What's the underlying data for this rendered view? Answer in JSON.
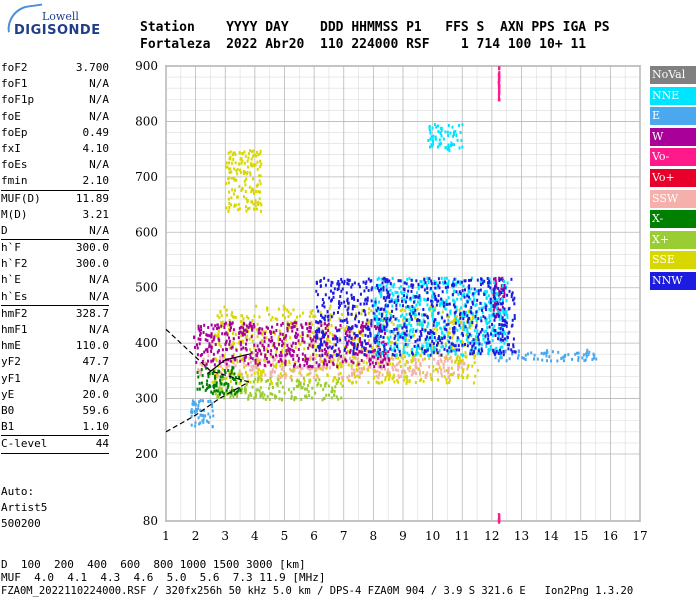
{
  "header": {
    "labels": "Station    YYYY DAY    DDD HHMMSS P1   FFS S  AXN PPS IGA PS",
    "values": "Fortaleza  2022 Abr20  110 224000 RSF    1 714 100 10+ 11"
  },
  "logo": {
    "top": "Lowell",
    "main": "DIGISONDE"
  },
  "params": {
    "group1": [
      {
        "name": "foF2",
        "value": "3.700"
      },
      {
        "name": "foF1",
        "value": "N/A"
      },
      {
        "name": "foF1p",
        "value": "N/A"
      },
      {
        "name": "foE",
        "value": "N/A"
      },
      {
        "name": "foEp",
        "value": "0.49"
      },
      {
        "name": "fxI",
        "value": "4.10"
      },
      {
        "name": "foEs",
        "value": "N/A"
      },
      {
        "name": "fmin",
        "value": "2.10"
      }
    ],
    "group2": [
      {
        "name": "MUF(D)",
        "value": "11.89"
      },
      {
        "name": "M(D)",
        "value": "3.21"
      },
      {
        "name": "D",
        "value": "N/A"
      }
    ],
    "group3": [
      {
        "name": "h`F",
        "value": "300.0"
      },
      {
        "name": "h`F2",
        "value": "300.0"
      },
      {
        "name": "h`E",
        "value": "N/A"
      },
      {
        "name": "h`Es",
        "value": "N/A"
      }
    ],
    "group4": [
      {
        "name": "hmF2",
        "value": "328.7"
      },
      {
        "name": "hmF1",
        "value": "N/A"
      },
      {
        "name": "hmE",
        "value": "110.0"
      },
      {
        "name": "yF2",
        "value": "47.7"
      },
      {
        "name": "yF1",
        "value": "N/A"
      },
      {
        "name": "yE",
        "value": "20.0"
      },
      {
        "name": "B0",
        "value": "59.6"
      },
      {
        "name": "B1",
        "value": "1.10"
      }
    ],
    "group5": [
      {
        "name": "C-level",
        "value": "44"
      }
    ]
  },
  "auto": {
    "line1": "Auto:",
    "line2": "Artist5",
    "line3": "500200"
  },
  "legend": [
    {
      "label": "NoVal",
      "color": "#808080"
    },
    {
      "label": "NNE",
      "color": "#00e5ff"
    },
    {
      "label": "E",
      "color": "#4aa8ee"
    },
    {
      "label": "W",
      "color": "#aa009a"
    },
    {
      "label": "Vo-",
      "color": "#ff1a8c"
    },
    {
      "label": "Vo+",
      "color": "#e8002a"
    },
    {
      "label": "SSW",
      "color": "#f5b0ac"
    },
    {
      "label": "X-",
      "color": "#008000"
    },
    {
      "label": "X+",
      "color": "#9acd32"
    },
    {
      "label": "SSE",
      "color": "#d8d800"
    },
    {
      "label": "NNW",
      "color": "#1c1ce0"
    }
  ],
  "footer": {
    "d_label": "D",
    "d_values": "  100  200  400  600  800 1000 1500 3000 [km]",
    "muf_label": "MUF",
    "muf_values": "  4.0  4.1  4.3  4.6  5.0  5.6  7.3 11.9 [MHz]",
    "info": "FZA0M_2022110224000.RSF / 320fx256h 50 kHz 5.0 km / DPS-4 FZA0M 904 / 3.9 S 321.6 E   Ion2Png 1.3.20"
  },
  "chart_data": {
    "type": "scatter",
    "title": "",
    "xlabel": "",
    "ylabel": "",
    "xlim": [
      1,
      17
    ],
    "ylim_segments": [
      [
        80,
        200
      ],
      [
        200,
        900
      ]
    ],
    "x_ticks": [
      1,
      2,
      3,
      4,
      5,
      6,
      7,
      8,
      9,
      10,
      11,
      12,
      13,
      14,
      15,
      16,
      17
    ],
    "y_ticks": [
      80,
      200,
      300,
      400,
      500,
      600,
      700,
      800,
      900
    ],
    "grid": true,
    "legend_position": "right",
    "series": [
      {
        "name": "SSW",
        "regions": [
          {
            "x": [
              2.0,
              11.2
            ],
            "y": [
              340,
              380
            ]
          }
        ]
      },
      {
        "name": "SSE",
        "regions": [
          {
            "x": [
              2.5,
              11.5
            ],
            "y": [
              330,
              470
            ]
          },
          {
            "x": [
              3.0,
              4.2
            ],
            "y": [
              640,
              750
            ]
          }
        ]
      },
      {
        "name": "W",
        "regions": [
          {
            "x": [
              1.9,
              8.5
            ],
            "y": [
              360,
              440
            ]
          },
          {
            "x": [
              12.0,
              12.4
            ],
            "y": [
              450,
              520
            ]
          }
        ]
      },
      {
        "name": "E",
        "regions": [
          {
            "x": [
              12.0,
              15.5
            ],
            "y": [
              370,
              390
            ]
          },
          {
            "x": [
              1.8,
              2.6
            ],
            "y": [
              250,
              300
            ]
          }
        ]
      },
      {
        "name": "NNE",
        "regions": [
          {
            "x": [
              9.8,
              11.0
            ],
            "y": [
              750,
              800
            ]
          },
          {
            "x": [
              8.0,
              12.5
            ],
            "y": [
              380,
              520
            ]
          }
        ]
      },
      {
        "name": "NNW",
        "regions": [
          {
            "x": [
              6.0,
              12.8
            ],
            "y": [
              380,
              520
            ]
          }
        ]
      },
      {
        "name": "X+",
        "regions": [
          {
            "x": [
              2.6,
              7.0
            ],
            "y": [
              300,
              340
            ]
          }
        ]
      },
      {
        "name": "X-",
        "regions": [
          {
            "x": [
              2.0,
              3.5
            ],
            "y": [
              310,
              360
            ]
          }
        ]
      },
      {
        "name": "Vo-",
        "regions": [
          {
            "x": [
              12.2,
              12.2
            ],
            "y": [
              840,
              900
            ]
          },
          {
            "x": [
              12.2,
              12.2
            ],
            "y": [
              80,
              95
            ]
          }
        ]
      }
    ],
    "profile_curves": [
      {
        "name": "dashed",
        "style": "dashed",
        "points": [
          [
            1.0,
            425
          ],
          [
            2.0,
            375
          ],
          [
            2.5,
            350
          ],
          [
            3.8,
            330
          ]
        ]
      },
      {
        "name": "lower",
        "style": "dashed",
        "points": [
          [
            1.0,
            240
          ],
          [
            2.0,
            270
          ],
          [
            2.8,
            300
          ],
          [
            3.8,
            330
          ]
        ]
      },
      {
        "name": "black",
        "style": "solid",
        "points": [
          [
            2.4,
            345
          ],
          [
            3.0,
            370
          ],
          [
            3.8,
            380
          ]
        ]
      }
    ]
  }
}
